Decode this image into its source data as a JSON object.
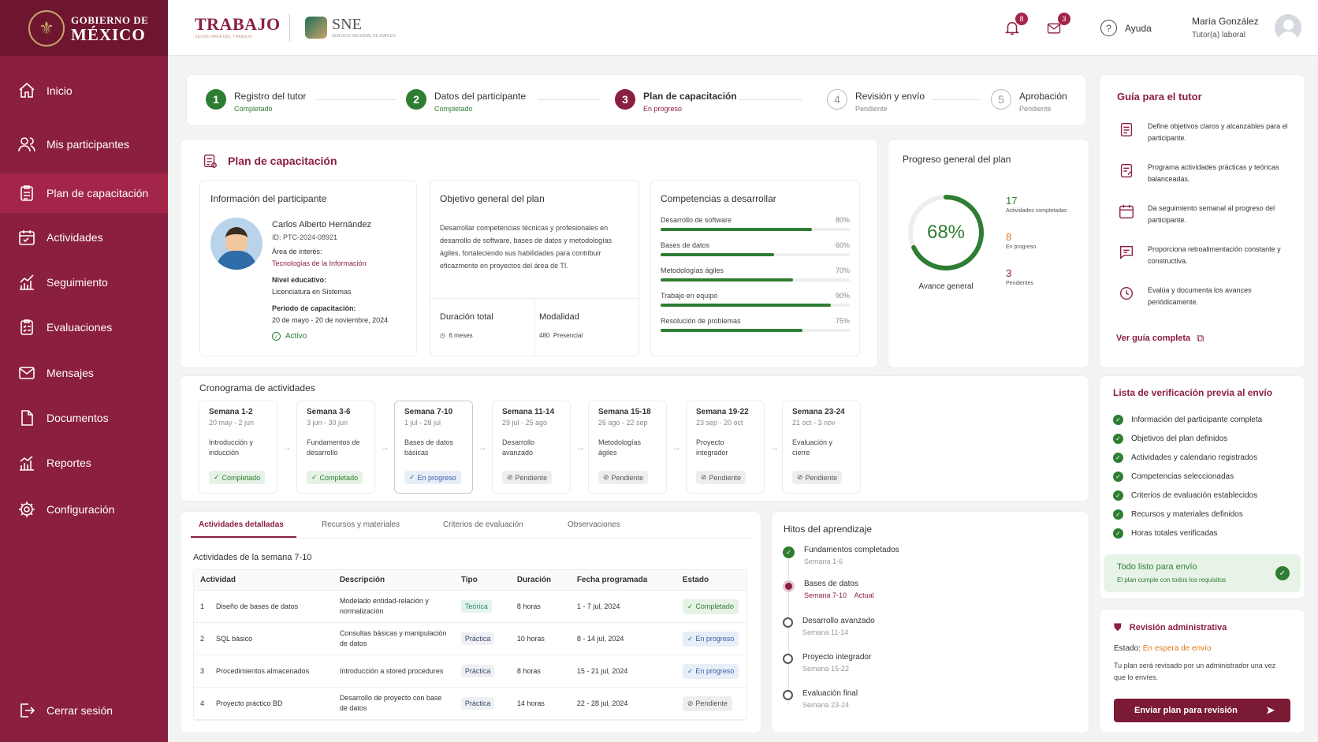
{
  "brand": {
    "gob_line1": "GOBIERNO DE",
    "gob_line2": "MÉXICO",
    "trabajo": "TRABAJO",
    "trabajo_sub": "SECRETARÍA DEL TRABAJO",
    "sne": "SNE",
    "sne_sub": "SERVICIO NACIONAL DE EMPLEO"
  },
  "colors": {
    "primary": "#8b1f3f",
    "success": "#2e7d32",
    "warning": "#e07b1a"
  },
  "sidebar": {
    "items": [
      {
        "label": "Inicio",
        "icon": "home-icon"
      },
      {
        "label": "Mis participantes",
        "icon": "users-icon"
      },
      {
        "label": "Plan de capacitación",
        "icon": "clipboard-icon",
        "active": true
      },
      {
        "label": "Actividades",
        "icon": "calendar-icon"
      },
      {
        "label": "Seguimiento",
        "icon": "chart-icon"
      },
      {
        "label": "Evaluaciones",
        "icon": "checklist-icon"
      },
      {
        "label": "Mensajes",
        "icon": "mail-icon"
      },
      {
        "label": "Documentos",
        "icon": "document-icon"
      },
      {
        "label": "Reportes",
        "icon": "bar-chart-icon"
      },
      {
        "label": "Configuración",
        "icon": "gear-icon"
      }
    ],
    "logout": "Cerrar sesión"
  },
  "header": {
    "notifications": "8",
    "messages": "3",
    "help": "Ayuda",
    "user_name": "María González",
    "user_role": "Tutor(a) laboral"
  },
  "steps": [
    {
      "n": "1",
      "title": "Registro del tutor",
      "status": "Completado"
    },
    {
      "n": "2",
      "title": "Datos del participante",
      "status": "Completado"
    },
    {
      "n": "3",
      "title": "Plan de capacitación",
      "status": "En progreso"
    },
    {
      "n": "4",
      "title": "Revisión y envío",
      "status": "Pendiente"
    },
    {
      "n": "5",
      "title": "Aprobación",
      "status": "Pendiente"
    }
  ],
  "plan": {
    "title": "Plan de capacitación",
    "participant": {
      "heading": "Información del participante",
      "name": "Carlos Alberto Hernández",
      "id": "ID: PTC-2024-08921",
      "area_label": "Área de interés:",
      "area": "Tecnologías de la Información",
      "edu_label": "Nivel educativo:",
      "edu": "Licenciatura en Sistemas",
      "period_label": "Periodo de capacitación:",
      "period": "20 de mayo - 20 de noviembre, 2024",
      "status": "Activo"
    },
    "objective": {
      "heading": "Objetivo general del plan",
      "text": "Desarrollar competencias técnicas y profesionales en desarrollo de software, bases de datos y metodologías ágiles, fortaleciendo sus habilidades para contribuir eficazmente en proyectos del área de TI.",
      "duration_label": "Duración total",
      "duration": "6 meses",
      "mode_label": "Modalidad",
      "mode_hours": "480",
      "mode": "Presencial"
    },
    "competencies": {
      "heading": "Competencias a desarrollar",
      "items": [
        {
          "name": "Desarrollo de software",
          "pct": "80%",
          "value": 80
        },
        {
          "name": "Bases de datos",
          "pct": "60%",
          "value": 60
        },
        {
          "name": "Metodologías ágiles",
          "pct": "70%",
          "value": 70
        },
        {
          "name": "Trabajo en equipo",
          "pct": "90%",
          "value": 90
        },
        {
          "name": "Resolución de problemas",
          "pct": "75%",
          "value": 75
        }
      ]
    }
  },
  "progress": {
    "title": "Progreso general del plan",
    "percent": "68%",
    "value": 68,
    "label": "Avance general",
    "completed": "17",
    "completed_label": "Actividades completadas",
    "in_progress": "8",
    "in_progress_label": "En progreso",
    "pending": "3",
    "pending_label": "Pendientes"
  },
  "schedule": {
    "title": "Cronograma de actividades",
    "weeks": [
      {
        "w": "Semana 1-2",
        "d": "20 may - 2 jun",
        "a": "Introducción y inducción",
        "s": "Completado",
        "t": "g"
      },
      {
        "w": "Semana 3-6",
        "d": "3 jun - 30 jun",
        "a": "Fundamentos de desarrollo",
        "s": "Completado",
        "t": "g"
      },
      {
        "w": "Semana 7-10",
        "d": "1 jul - 28 jul",
        "a": "Bases de datos básicas",
        "s": "En progreso",
        "t": "b"
      },
      {
        "w": "Semana 11-14",
        "d": "29 jul - 25 ago",
        "a": "Desarrollo avanzado",
        "s": "Pendiente",
        "t": "p"
      },
      {
        "w": "Semana 15-18",
        "d": "26 ago - 22 sep",
        "a": "Metodologías ágiles",
        "s": "Pendiente",
        "t": "p"
      },
      {
        "w": "Semana 19-22",
        "d": "23 sep - 20 oct",
        "a": "Proyecto integrador",
        "s": "Pendiente",
        "t": "p"
      },
      {
        "w": "Semana 23-24",
        "d": "21 oct - 3 nov",
        "a": "Evaluación y cierre",
        "s": "Pendiente",
        "t": "p"
      }
    ]
  },
  "tabs": [
    "Actividades detalladas",
    "Recursos y materiales",
    "Criterios de evaluación",
    "Observaciones"
  ],
  "activities": {
    "title": "Actividades de la semana 7-10",
    "headers": [
      "Actividad",
      "Descripción",
      "Tipo",
      "Duración",
      "Fecha programada",
      "Estado"
    ],
    "rows": [
      {
        "n": "1",
        "name": "Diseño de bases de datos",
        "desc": "Modelado entidad-relación y normalización",
        "type": "Teórica",
        "dur": "8 horas",
        "date": "1 - 7 jul, 2024",
        "status": "Completado"
      },
      {
        "n": "2",
        "name": "SQL básico",
        "desc": "Consultas básicas y manipulación de datos",
        "type": "Práctica",
        "dur": "10 horas",
        "date": "8 - 14 jul, 2024",
        "status": "En progreso"
      },
      {
        "n": "3",
        "name": "Procedimientos almacenados",
        "desc": "Introducción a stored procedures",
        "type": "Práctica",
        "dur": "8 horas",
        "date": "15 - 21 jul, 2024",
        "status": "En progreso"
      },
      {
        "n": "4",
        "name": "Proyecto práctico BD",
        "desc": "Desarrollo de proyecto con base de datos",
        "type": "Práctica",
        "dur": "14 horas",
        "date": "22 - 28 jul, 2024",
        "status": "Pendiente"
      }
    ]
  },
  "milestones": {
    "title": "Hitos del aprendizaje",
    "items": [
      {
        "t": "Fundamentos completados",
        "s": "Semana 1-6"
      },
      {
        "t": "Bases de datos",
        "s": "Semana 7-10",
        "badge": "Actual"
      },
      {
        "t": "Desarrollo avanzado",
        "s": "Semana 11-14"
      },
      {
        "t": "Proyecto integrador",
        "s": "Semana 15-22"
      },
      {
        "t": "Evaluación final",
        "s": "Semana 23-24"
      }
    ]
  },
  "guide": {
    "title": "Guía para el tutor",
    "items": [
      "Define objetivos claros y alcanzables para el participante.",
      "Programa actividades prácticas y teóricas balanceadas.",
      "Da seguimiento semanal al progreso del participante.",
      "Proporciona retroalimentación constante y constructiva.",
      "Evalúa y documenta los avances periódicamente."
    ],
    "link": "Ver guía completa"
  },
  "checklist": {
    "title": "Lista de verificación previa al envío",
    "items": [
      "Información del participante completa",
      "Objetivos del plan definidos",
      "Actividades y calendario registrados",
      "Competencias seleccionadas",
      "Criterios de evaluación establecidos",
      "Recursos y materiales definidos",
      "Horas totales verificadas"
    ],
    "ready_title": "Todo listo para envío",
    "ready_sub": "El plan cumple con todos los requisitos"
  },
  "review": {
    "title": "Revisión administrativa",
    "state_label": "Estado:",
    "state": "En espera de envío",
    "text": "Tu plan será revisado por un administrador una vez que lo envíes.",
    "button": "Enviar plan para revisión"
  }
}
